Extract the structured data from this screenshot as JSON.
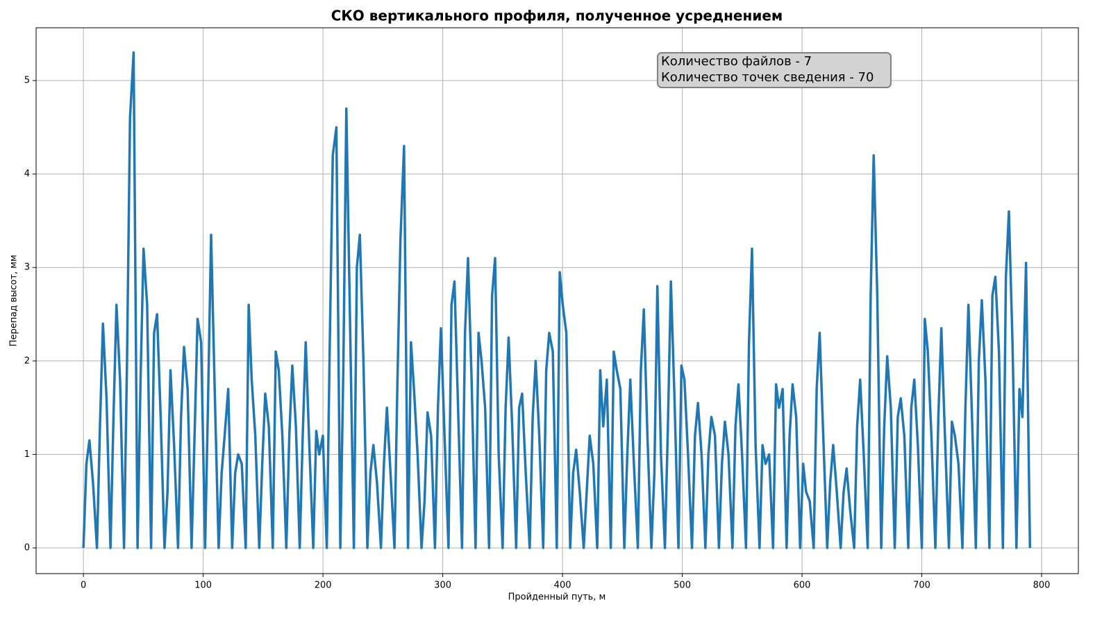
{
  "chart_data": {
    "type": "line",
    "title": "СКО вертикального профиля, полученное усреднением",
    "xlabel": "Пройденный путь, м",
    "ylabel": "Перепад высот, мм",
    "annotation": [
      "Количество файлов - 7",
      "Количество точек сведения - 70"
    ],
    "xlim": [
      -39.5,
      830.7
    ],
    "ylim": [
      -0.275,
      5.565
    ],
    "xticks": [
      0,
      100,
      200,
      300,
      400,
      500,
      600,
      700,
      800
    ],
    "yticks": [
      0,
      1,
      2,
      3,
      4,
      5
    ],
    "grid": true,
    "series": [
      {
        "color": "#1f77b4",
        "x": [
          0,
          2.5,
          5,
          8,
          11.3,
          13.8,
          16.3,
          19.3,
          22.6,
          25.1,
          27.6,
          30.6,
          33.9,
          36.4,
          38.9,
          41.9,
          45.2,
          47.7,
          50.2,
          53.2,
          56.5,
          59,
          61.5,
          64.5,
          67.7,
          70.2,
          72.7,
          75.7,
          79,
          81.5,
          84,
          87,
          90.3,
          92.8,
          95.3,
          98.3,
          101.6,
          104.1,
          106.6,
          109.6,
          112.9,
          115.4,
          117.9,
          120.9,
          124.2,
          126.7,
          129.2,
          132.2,
          135.5,
          138,
          140.5,
          143.5,
          146.8,
          149.3,
          151.8,
          154.8,
          158.1,
          160.6,
          163.1,
          166.1,
          169.4,
          171.9,
          174.4,
          177.4,
          180.6,
          183.1,
          185.6,
          188.6,
          191.9,
          194.4,
          196.9,
          199.9,
          203.2,
          205.7,
          208.2,
          211.2,
          214.5,
          217,
          219.5,
          222.5,
          225.8,
          228.3,
          230.8,
          233.8,
          237.1,
          239.6,
          242.1,
          245.1,
          248.4,
          250.9,
          253.4,
          256.4,
          259.7,
          262.2,
          264.7,
          267.7,
          271,
          273.5,
          276,
          279,
          282.3,
          284.8,
          287.3,
          290.3,
          293.5,
          296,
          298.5,
          301.5,
          304.8,
          307.3,
          309.8,
          312.8,
          316.1,
          318.6,
          321.1,
          324.1,
          327.4,
          329.9,
          332.4,
          335.4,
          338.7,
          341.2,
          343.7,
          346.7,
          350,
          352.5,
          355,
          358,
          361.3,
          363.8,
          366.3,
          369.3,
          372.6,
          375.1,
          377.6,
          380.6,
          383.9,
          386.4,
          388.9,
          391.9,
          395.2,
          397.7,
          400.2,
          403.2,
          406.4,
          408.9,
          411.4,
          414.4,
          417.7,
          420.2,
          422.7,
          425.7,
          429,
          431.5,
          434,
          437,
          440.3,
          442.8,
          445.3,
          448.3,
          451.6,
          454.1,
          456.6,
          459.6,
          462.9,
          465.4,
          467.9,
          470.9,
          474.2,
          476.7,
          479.2,
          482.2,
          485.5,
          488,
          490.5,
          493.5,
          496.8,
          499.3,
          501.8,
          504.8,
          508.1,
          510.6,
          513.1,
          516.1,
          519.3,
          521.8,
          524.3,
          527.3,
          530.6,
          533.1,
          535.6,
          538.6,
          541.9,
          544.4,
          546.9,
          549.9,
          553.2,
          555.7,
          558.2,
          561.2,
          564.5,
          567,
          569.5,
          572.5,
          575.8,
          578.3,
          580.8,
          583.8,
          587.1,
          589.6,
          592.1,
          595.1,
          598.4,
          600.9,
          603.4,
          606.4,
          609.7,
          612.2,
          614.7,
          617.7,
          621,
          623.5,
          626,
          629,
          632.2,
          634.7,
          637.2,
          640.2,
          643.5,
          646,
          648.5,
          651.5,
          654.8,
          657.3,
          659.8,
          662.8,
          666.1,
          668.6,
          671.1,
          674.1,
          677.4,
          679.9,
          682.4,
          685.4,
          688.7,
          691.2,
          693.7,
          696.7,
          700,
          702.5,
          705,
          708,
          711.3,
          713.8,
          716.3,
          719.3,
          722.6,
          725.1,
          727.6,
          730.6,
          733.9,
          736.4,
          738.9,
          741.9,
          745.1,
          747.6,
          750.1,
          753.1,
          756.4,
          758.9,
          761.4,
          764.4,
          767.7,
          770.2,
          772.7,
          775.7,
          779,
          781.5,
          784,
          787,
          790.3
        ],
        "values": [
          0,
          0.9,
          1.15,
          0.7,
          0,
          1.3,
          2.4,
          1.6,
          0,
          1.4,
          2.6,
          1.8,
          0,
          2.0,
          4.6,
          5.3,
          0,
          1.8,
          3.2,
          2.6,
          0,
          2.3,
          2.5,
          1.4,
          0,
          0.6,
          1.9,
          1.1,
          0,
          1.4,
          2.15,
          1.7,
          0,
          1.2,
          2.45,
          2.2,
          0,
          1.6,
          3.35,
          1.7,
          0,
          0.8,
          1.2,
          1.7,
          0,
          0.8,
          1.0,
          0.9,
          0,
          2.6,
          1.8,
          1.2,
          0,
          0.9,
          1.65,
          1.3,
          0,
          2.1,
          1.9,
          1.2,
          0,
          1.2,
          1.95,
          1.3,
          0,
          1.2,
          2.2,
          1.1,
          0,
          1.25,
          1.0,
          1.2,
          0,
          2.2,
          4.2,
          4.5,
          0,
          1.9,
          4.7,
          2.5,
          0,
          3.0,
          3.35,
          2.0,
          0,
          0.8,
          1.1,
          0.7,
          0,
          0.9,
          1.5,
          0.8,
          0,
          1.8,
          3.3,
          4.3,
          0,
          2.2,
          1.7,
          1.0,
          0,
          0.5,
          1.45,
          1.2,
          0,
          1.5,
          2.35,
          1.2,
          0,
          2.6,
          2.85,
          1.5,
          0,
          2.3,
          3.1,
          1.8,
          0,
          2.3,
          2.0,
          1.5,
          0,
          2.7,
          3.1,
          1.0,
          0,
          1.5,
          2.25,
          1.3,
          0,
          1.5,
          1.65,
          0.8,
          0,
          1.4,
          2.0,
          1.2,
          0,
          1.9,
          2.3,
          2.1,
          0,
          2.95,
          2.6,
          2.3,
          0,
          0.8,
          1.05,
          0.6,
          0,
          0.6,
          1.2,
          0.9,
          0,
          1.9,
          1.3,
          1.8,
          0,
          2.1,
          1.9,
          1.7,
          0,
          1.0,
          1.8,
          0.9,
          0,
          1.9,
          2.55,
          1.2,
          0,
          0.8,
          2.8,
          1.0,
          0,
          1.3,
          2.85,
          1.6,
          0,
          1.95,
          1.8,
          1.0,
          0,
          1.2,
          1.55,
          1.0,
          0,
          1.0,
          1.4,
          1.2,
          0,
          0.9,
          1.35,
          1.0,
          0,
          1.3,
          1.75,
          1.0,
          0,
          2.2,
          3.2,
          1.1,
          0,
          1.1,
          0.9,
          1.0,
          0,
          1.75,
          1.5,
          1.7,
          0,
          1.2,
          1.75,
          1.4,
          0,
          0.9,
          0.6,
          0.5,
          0,
          1.7,
          2.3,
          1.2,
          0,
          0.7,
          1.1,
          0.6,
          0,
          0.6,
          0.85,
          0.4,
          0,
          1.3,
          1.8,
          1.0,
          0,
          2.7,
          4.2,
          2.7,
          0,
          1.3,
          2.05,
          1.5,
          0,
          1.4,
          1.6,
          1.2,
          0,
          1.5,
          1.8,
          1.1,
          0,
          2.45,
          2.1,
          1.2,
          0,
          1.4,
          2.35,
          1.2,
          0,
          1.35,
          1.2,
          0.9,
          0,
          1.5,
          2.6,
          1.4,
          0,
          2.0,
          2.65,
          1.8,
          0,
          2.7,
          2.9,
          2.1,
          0,
          2.9,
          3.6,
          2.2,
          0,
          1.7,
          1.4,
          3.05,
          0
        ]
      }
    ]
  }
}
